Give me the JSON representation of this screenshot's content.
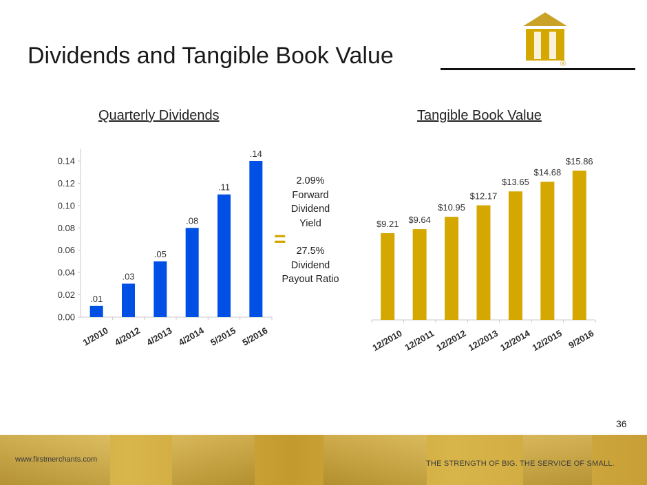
{
  "slide": {
    "title": "Dividends and Tangible Book Value",
    "page_number": "36",
    "logo_icon": "first-merchants-arch-logo-icon",
    "registered_mark": "®",
    "brand_gold": "#d4a800",
    "bar_blue": "#0050e6"
  },
  "yield_box": {
    "line1": "2.09%",
    "line2": "Forward",
    "line3": "Dividend",
    "line4": "Yield",
    "equals": "=",
    "line5": "27.5%",
    "line6": "Dividend",
    "line7": "Payout Ratio"
  },
  "footer": {
    "url": "www.firstmerchants.com",
    "tagline": "THE STRENGTH OF BIG. THE SERVICE OF SMALL."
  },
  "chart_data": [
    {
      "type": "bar",
      "title": "Quarterly Dividends",
      "categories": [
        "1/2010",
        "4/2012",
        "4/2013",
        "4/2014",
        "5/2015",
        "5/2016"
      ],
      "values": [
        0.01,
        0.03,
        0.05,
        0.08,
        0.11,
        0.14
      ],
      "data_labels": [
        ".01",
        ".03",
        ".05",
        ".08",
        ".11",
        ".14"
      ],
      "yticks": [
        "0.00",
        "0.02",
        "0.04",
        "0.06",
        "0.08",
        "0.10",
        "0.12",
        "0.14"
      ],
      "ylim": [
        0,
        0.15
      ],
      "color": "#0050e6",
      "grid": false
    },
    {
      "type": "bar",
      "title": "Tangible Book Value",
      "categories": [
        "12/2010",
        "12/2011",
        "12/2012",
        "12/2013",
        "12/2014",
        "12/2015",
        "9/2016"
      ],
      "values": [
        9.21,
        9.64,
        10.95,
        12.17,
        13.65,
        14.68,
        15.86
      ],
      "data_labels": [
        "$9.21",
        "$9.64",
        "$10.95",
        "$12.17",
        "$13.65",
        "$14.68",
        "$15.86"
      ],
      "ylim": [
        0,
        16.5
      ],
      "color": "#d4a800",
      "grid": false
    }
  ]
}
